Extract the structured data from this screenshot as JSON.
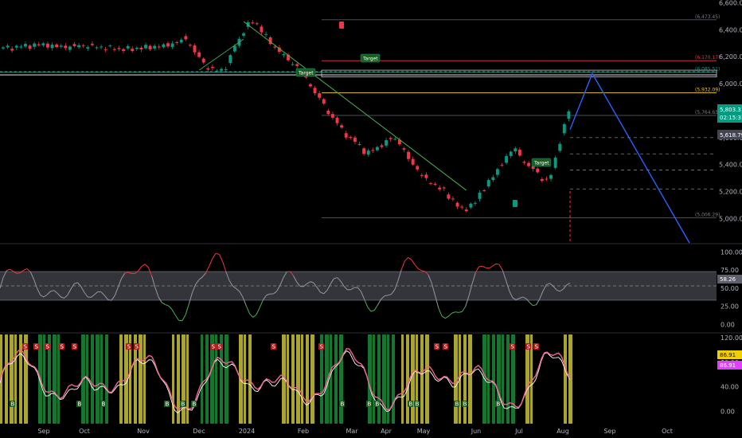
{
  "chart_data": {
    "type": "candlestick",
    "price_panel": {
      "y_ticks": [
        "6,600.00",
        "6,400.00",
        "6,200.00",
        "6,000.00",
        "5,800.00",
        "5,600.00",
        "5,400.00",
        "5,200.00",
        "5,000.00"
      ],
      "y_tick_values": [
        6600,
        6400,
        6200,
        6000,
        5800,
        5600,
        5400,
        5200,
        5000
      ],
      "ylim": [
        4820,
        6620
      ],
      "current_price_label": "5,803.31",
      "countdown_label": "02:15:33",
      "secondary_price_label": "5,618.79",
      "levels": [
        {
          "value": 6473.45,
          "label": "(6,473.45)",
          "color": "#555a63"
        },
        {
          "value": 6170.17,
          "label": "(6,170.17)",
          "color": "#f23645"
        },
        {
          "value": 6085.51,
          "label": "(6,085.51)",
          "color": "#089981"
        },
        {
          "value": 6065,
          "label": "",
          "color": "#c9cbd1"
        },
        {
          "value": 5932.09,
          "label": "(5,932.09)",
          "color": "#f0d000"
        },
        {
          "value": 5764.65,
          "label": "(5,764.65)",
          "color": "#555a63"
        },
        {
          "value": 5006.29,
          "label": "(5,006.29)",
          "color": "#555a63"
        }
      ],
      "target_labels": [
        "Target",
        "Target",
        "Target"
      ],
      "projection": [
        {
          "x_index": 180,
          "value": 5660
        },
        {
          "x_index": 186,
          "value": 6075
        },
        {
          "x_index": 222,
          "value": 4820
        }
      ]
    },
    "oscillator_1": {
      "y_ticks": [
        "100.00",
        "75.00",
        "50.00",
        "25.00",
        "0.00"
      ],
      "y_tick_values": [
        100,
        75,
        50,
        25,
        0
      ],
      "ylim": [
        -5,
        107
      ],
      "band": [
        30,
        70
      ],
      "current_label": "58.26"
    },
    "oscillator_2": {
      "y_ticks": [
        "120.00",
        "80.00",
        "40.00",
        "0.00"
      ],
      "y_tick_values": [
        120,
        80,
        40,
        0
      ],
      "ylim": [
        -20,
        125
      ],
      "current_label_1": "86.91",
      "current_label_2": "86.91",
      "signal_sell": "S",
      "signal_buy": "B"
    },
    "x_ticks": [
      "Sep",
      "Oct",
      "Nov",
      "Dec",
      "2024",
      "Feb",
      "Mar",
      "Apr",
      "May",
      "Jun",
      "Jul",
      "Aug",
      "Sep",
      "Oct"
    ],
    "colors": {
      "bull": "#089981",
      "bear": "#f23645",
      "projection": "#2962ff",
      "trendline": "#4caf50",
      "osc_high": "#f23645",
      "osc_mid": "#9598a1",
      "osc_low": "#4caf50",
      "pink": "#f06292",
      "yellow_zone": "#c8c23a",
      "green_zone": "#1b8a3a"
    }
  }
}
